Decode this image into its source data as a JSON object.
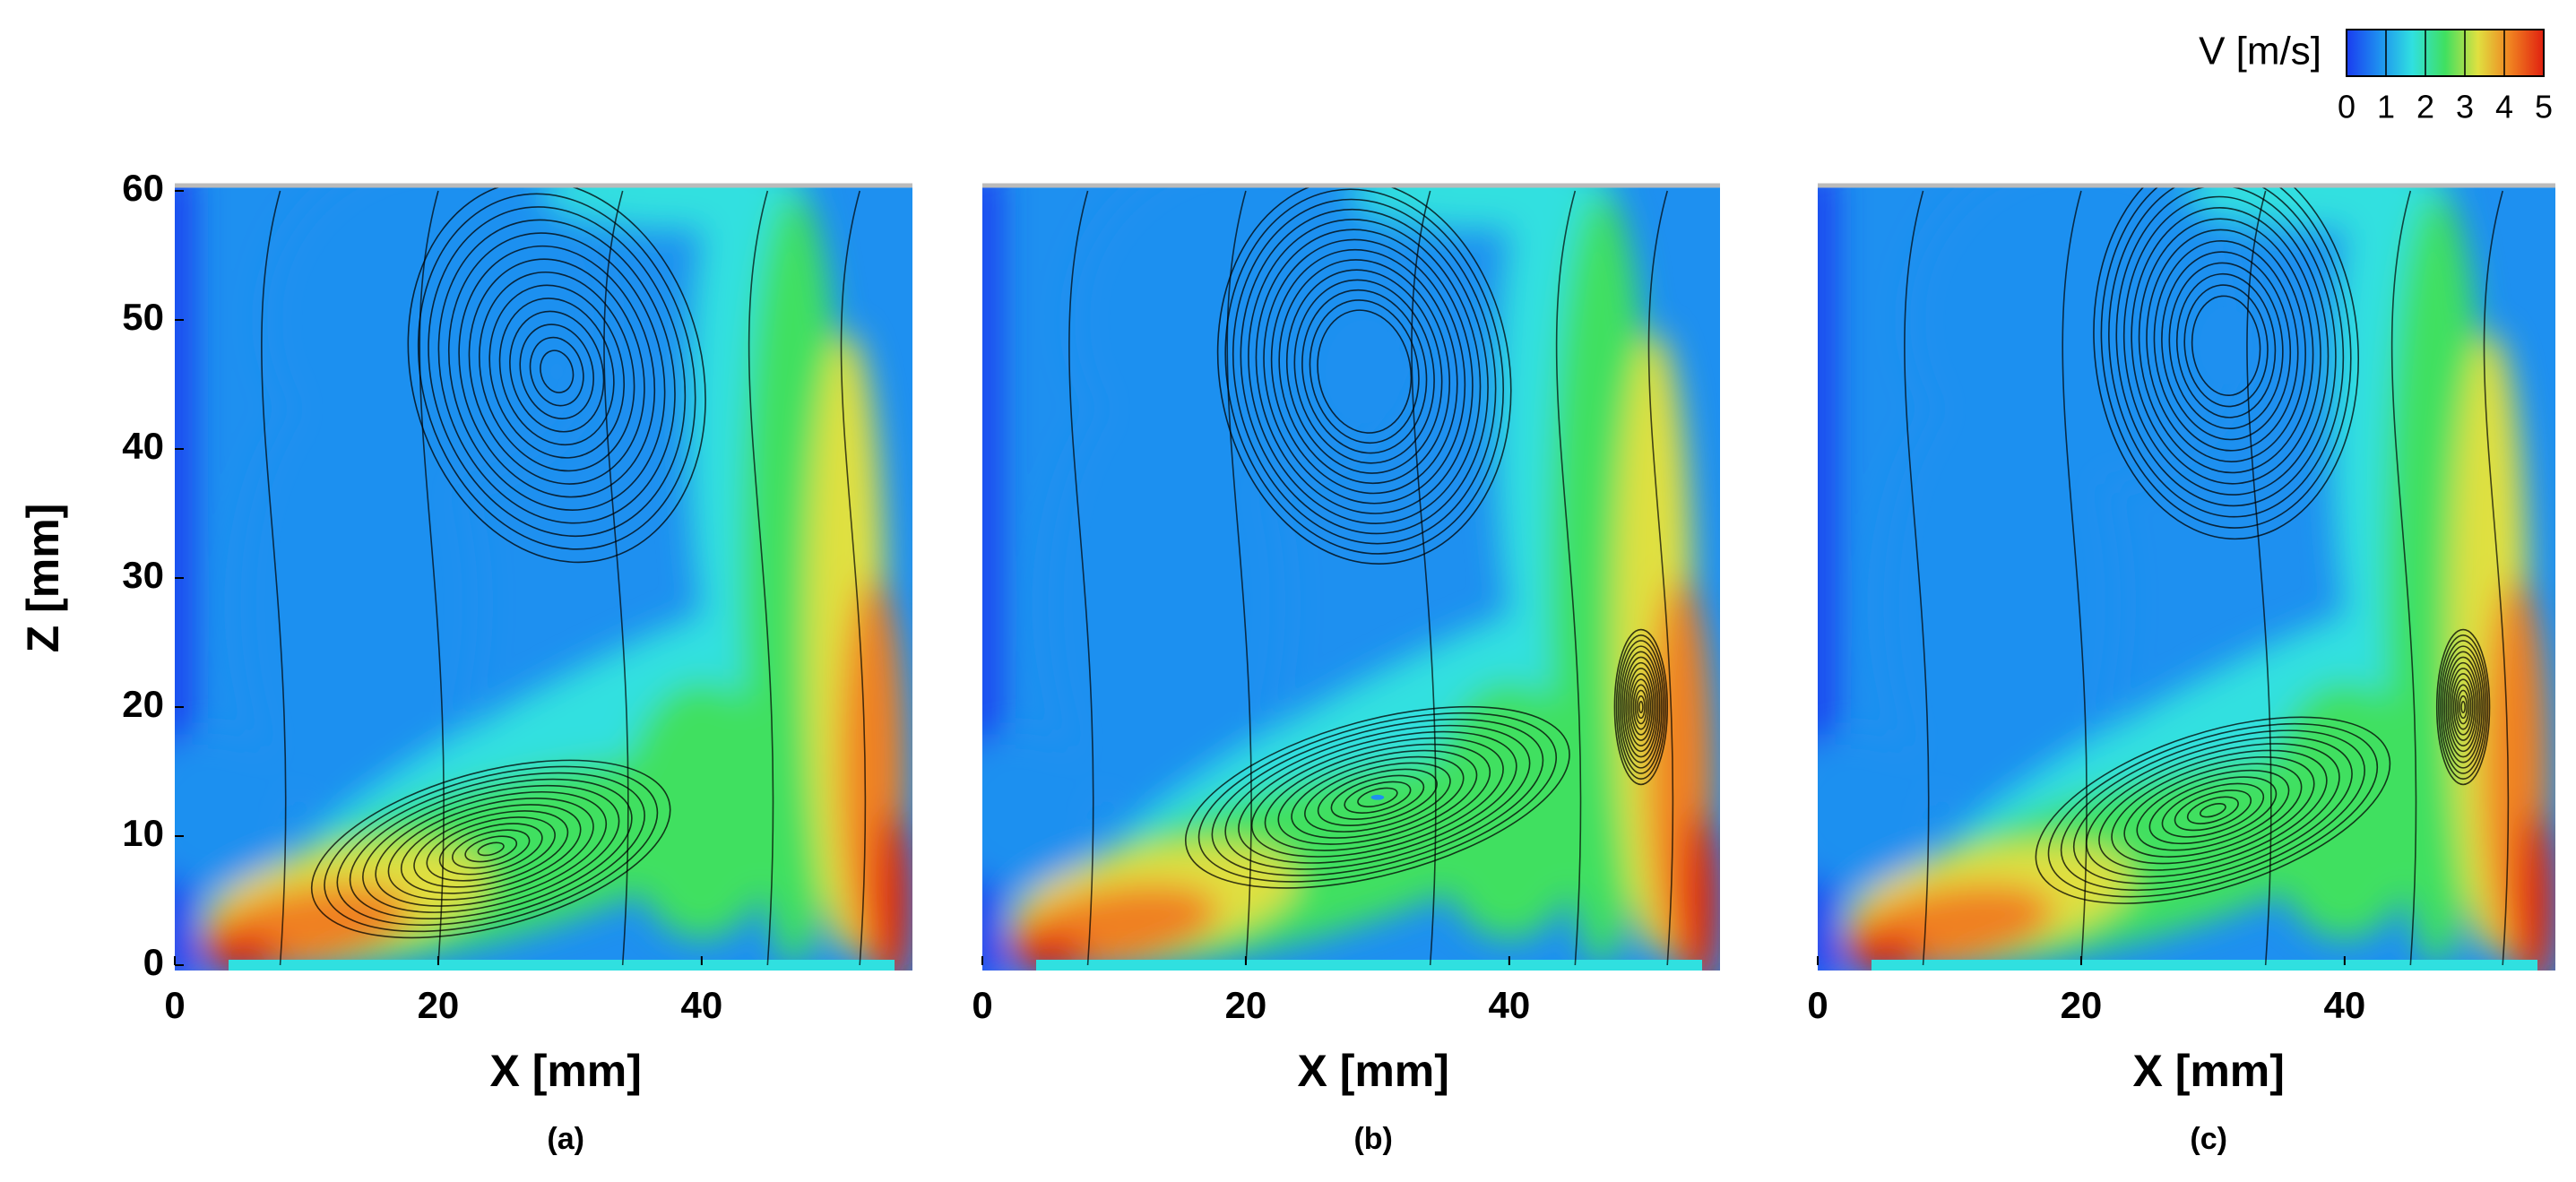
{
  "chart_data": [
    {
      "type": "contour",
      "xlabel": "X [mm]",
      "ylabel": "Z [mm]",
      "caption": "(a)",
      "xlim": [
        0,
        56
      ],
      "ylim": [
        0,
        60
      ],
      "xticks": [
        0,
        20,
        40
      ],
      "yticks": [
        0,
        10,
        20,
        30,
        40,
        50,
        60
      ]
    },
    {
      "type": "contour",
      "xlabel": "X [mm]",
      "caption": "(b)",
      "xlim": [
        0,
        56
      ],
      "ylim": [
        0,
        60
      ],
      "xticks": [
        0,
        20,
        40
      ]
    },
    {
      "type": "contour",
      "xlabel": "X [mm]",
      "caption": "(c)",
      "xlim": [
        0,
        56
      ],
      "ylim": [
        0,
        60
      ],
      "xticks": [
        0,
        20,
        40
      ]
    }
  ],
  "colorbar": {
    "title": "V [m/s]",
    "lim": [
      0,
      5
    ],
    "ticks": [
      0,
      1,
      2,
      3,
      4,
      5
    ],
    "colors": [
      "#1a3cf0",
      "#1e90f0",
      "#30e0e0",
      "#40e060",
      "#e0e040",
      "#f08020",
      "#e02010"
    ]
  }
}
